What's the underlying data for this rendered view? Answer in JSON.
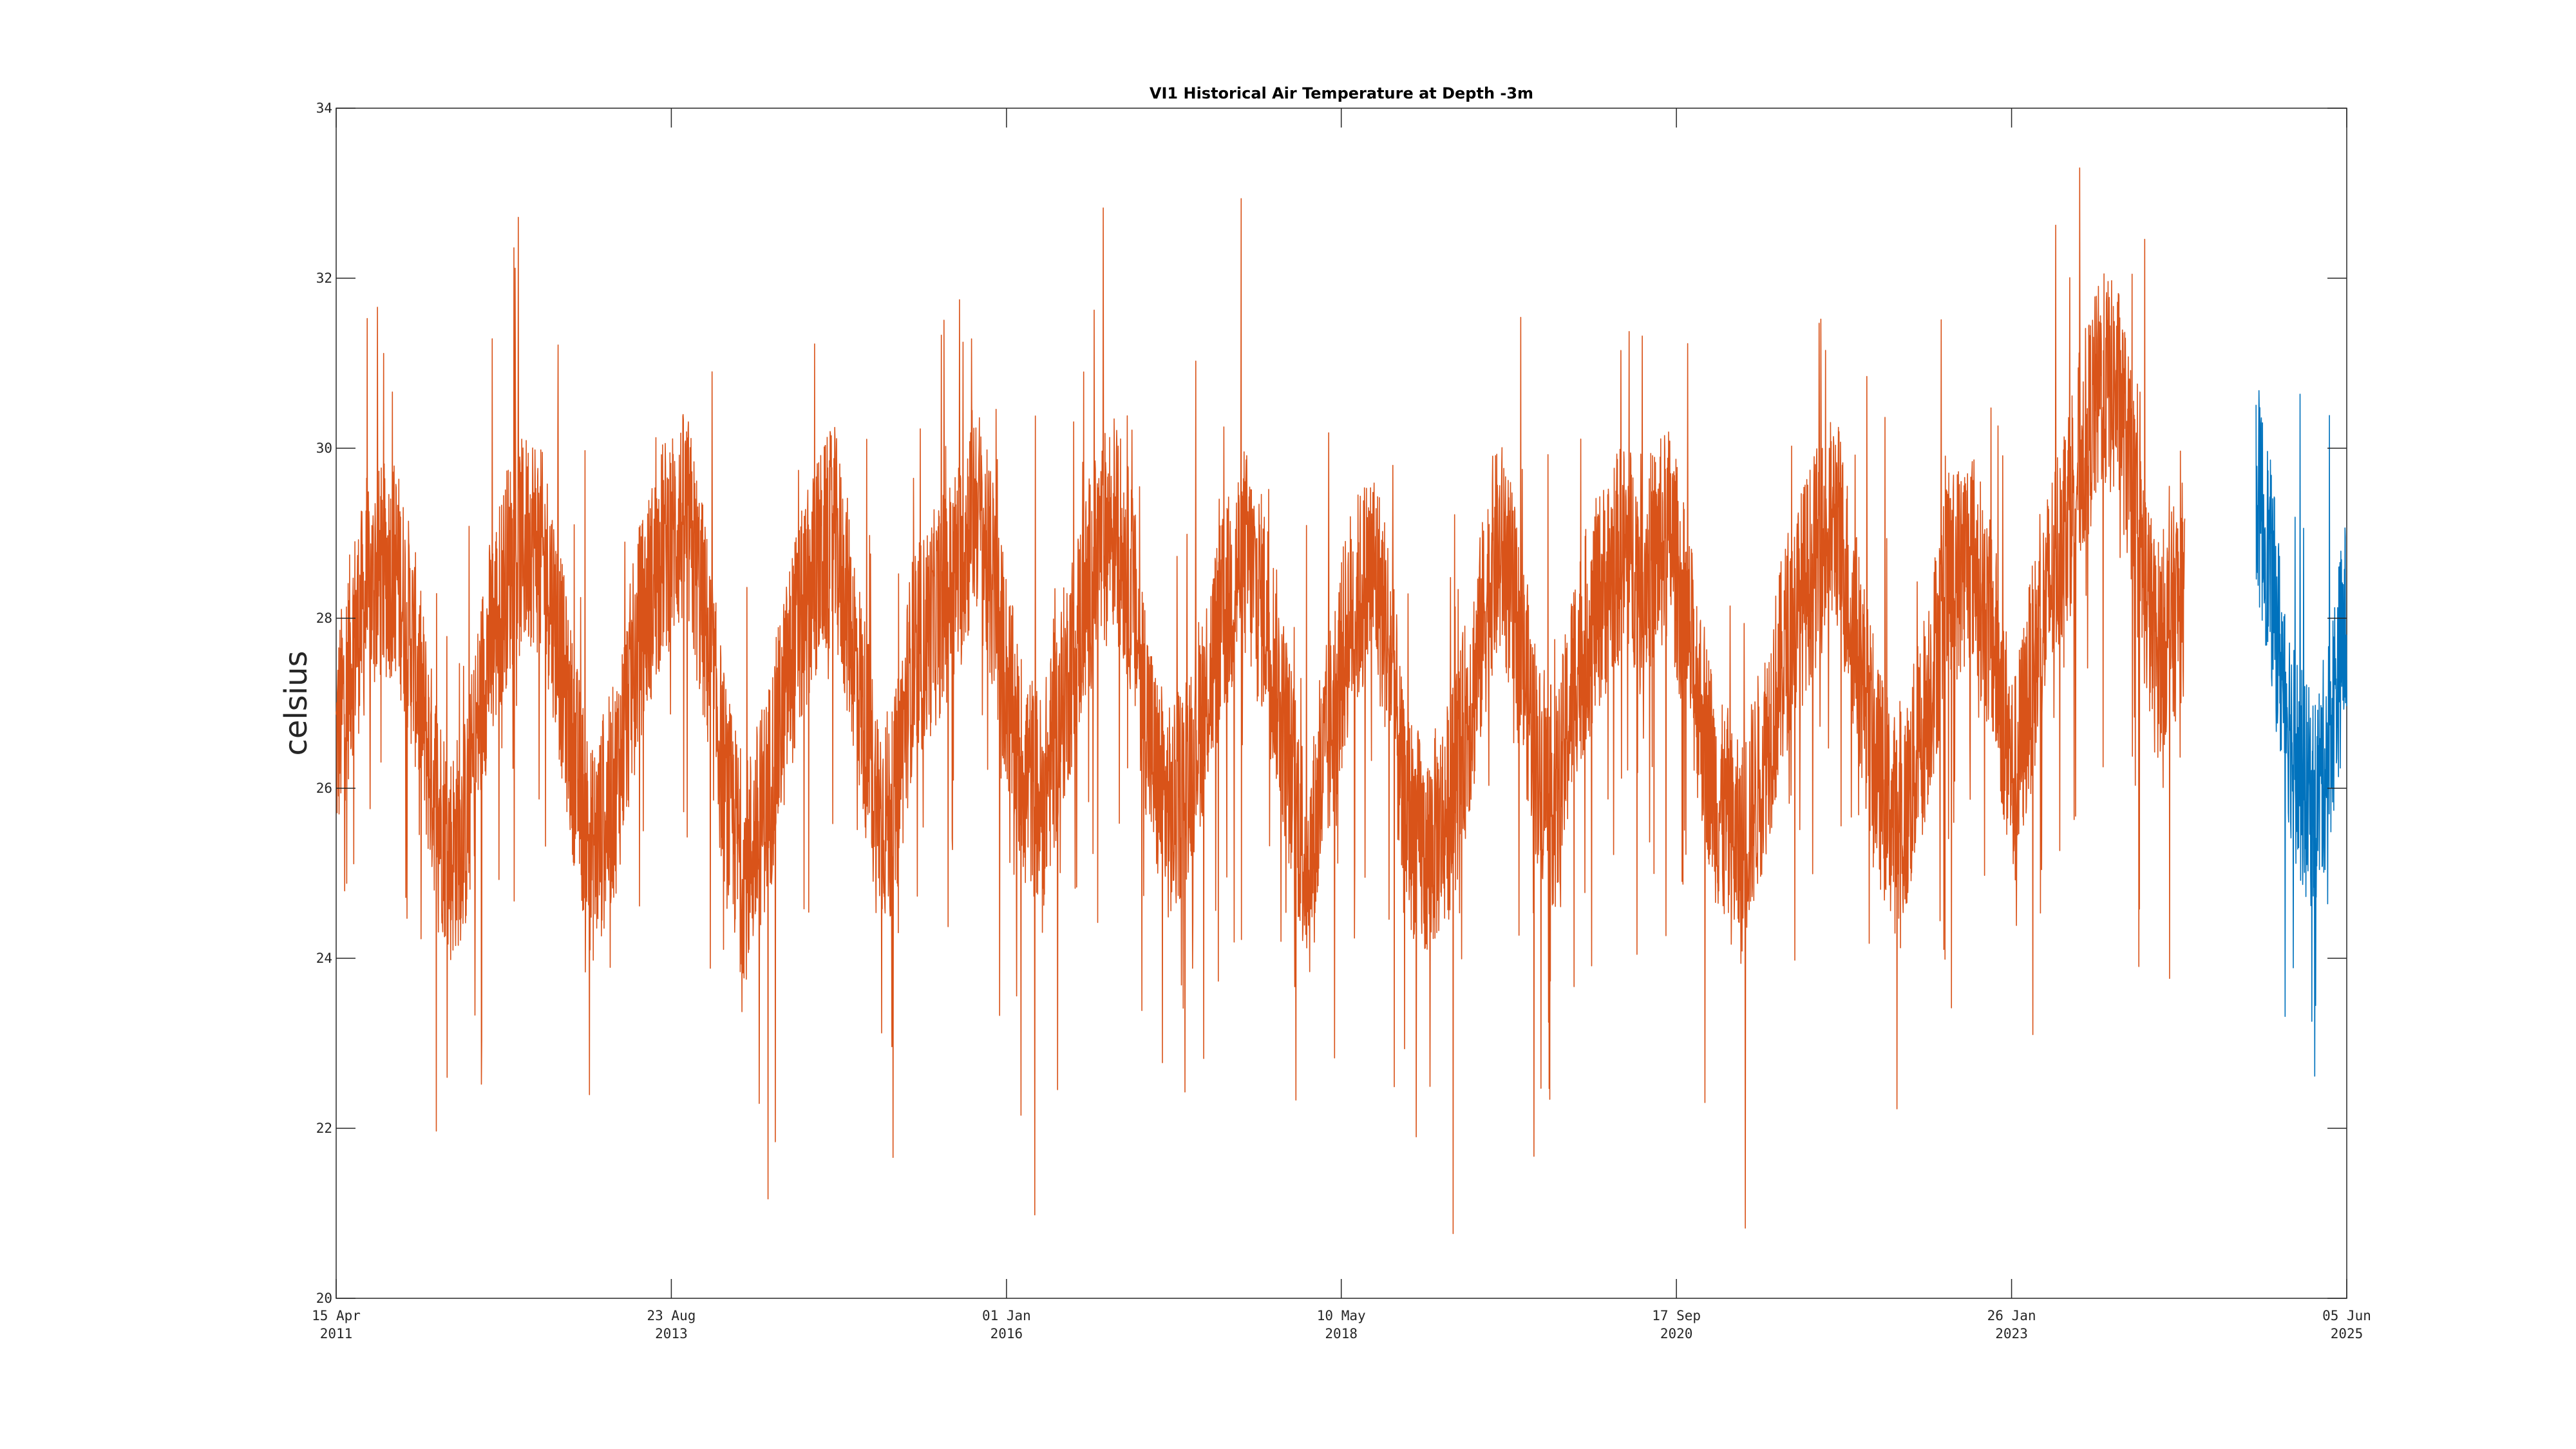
{
  "chart_data": {
    "type": "line",
    "title": "VI1 Historical Air Temperature at Depth -3m",
    "xlabel": "",
    "ylabel": "celsius",
    "ylim": [
      20,
      34
    ],
    "xlim": [
      "2011-04-15",
      "2025-06-05"
    ],
    "grid": false,
    "legend": "none",
    "y_ticks": [
      20,
      22,
      24,
      26,
      28,
      30,
      32,
      34
    ],
    "x_ticks": [
      {
        "date": "2011-04-15",
        "line1": "15 Apr",
        "line2": "2011"
      },
      {
        "date": "2013-08-23",
        "line1": "23 Aug",
        "line2": "2013"
      },
      {
        "date": "2016-01-01",
        "line1": "01 Jan",
        "line2": "2016"
      },
      {
        "date": "2018-05-10",
        "line1": "10 May",
        "line2": "2018"
      },
      {
        "date": "2020-09-17",
        "line1": "17 Sep",
        "line2": "2020"
      },
      {
        "date": "2023-01-26",
        "line1": "26 Jan",
        "line2": "2023"
      },
      {
        "date": "2025-06-05",
        "line1": "05 Jun",
        "line2": "2025"
      }
    ],
    "series": [
      {
        "color": "#D95319",
        "points": [
          [
            "2011-04-15",
            26.5
          ],
          [
            "2011-06-01",
            27.8
          ],
          [
            "2011-08-01",
            28.5
          ],
          [
            "2011-09-15",
            28.6
          ],
          [
            "2011-11-01",
            27.6
          ],
          [
            "2011-12-15",
            26.2
          ],
          [
            "2012-02-01",
            25.2
          ],
          [
            "2012-03-15",
            25.6
          ],
          [
            "2012-05-01",
            27.4
          ],
          [
            "2012-07-01",
            28.6
          ],
          [
            "2012-09-01",
            29.0
          ],
          [
            "2012-10-15",
            28.4
          ],
          [
            "2012-12-15",
            26.4
          ],
          [
            "2013-02-01",
            25.2
          ],
          [
            "2013-04-01",
            26.0
          ],
          [
            "2013-06-01",
            27.8
          ],
          [
            "2013-08-01",
            28.8
          ],
          [
            "2013-10-01",
            29.2
          ],
          [
            "2013-11-15",
            28.0
          ],
          [
            "2014-01-15",
            25.8
          ],
          [
            "2014-03-01",
            25.0
          ],
          [
            "2014-05-01",
            26.0
          ],
          [
            "2014-07-01",
            27.6
          ],
          [
            "2014-09-01",
            28.6
          ],
          [
            "2014-10-15",
            29.0
          ],
          [
            "2014-12-01",
            27.8
          ],
          [
            "2015-02-01",
            25.8
          ],
          [
            "2015-03-15",
            25.6
          ],
          [
            "2015-05-01",
            27.4
          ],
          [
            "2015-07-01",
            28.0
          ],
          [
            "2015-09-01",
            28.6
          ],
          [
            "2015-10-15",
            29.4
          ],
          [
            "2015-12-01",
            28.2
          ],
          [
            "2016-02-01",
            26.4
          ],
          [
            "2016-04-01",
            25.8
          ],
          [
            "2016-06-01",
            27.2
          ],
          [
            "2016-08-01",
            28.4
          ],
          [
            "2016-10-01",
            29.2
          ],
          [
            "2016-11-15",
            28.4
          ],
          [
            "2017-01-15",
            26.2
          ],
          [
            "2017-03-01",
            25.6
          ],
          [
            "2017-05-01",
            26.6
          ],
          [
            "2017-07-01",
            27.8
          ],
          [
            "2017-09-01",
            28.8
          ],
          [
            "2017-11-01",
            28.0
          ],
          [
            "2018-01-01",
            26.2
          ],
          [
            "2018-02-15",
            25.0
          ],
          [
            "2018-04-01",
            26.4
          ],
          [
            "2018-06-01",
            28.0
          ],
          [
            "2018-08-01",
            28.6
          ],
          [
            "2018-09-15",
            27.6
          ],
          [
            "2018-10-15",
            25.8
          ],
          [
            "2018-12-15",
            25.2
          ],
          [
            "2019-02-15",
            25.8
          ],
          [
            "2019-04-15",
            27.2
          ],
          [
            "2019-06-01",
            28.6
          ],
          [
            "2019-07-01",
            28.8
          ],
          [
            "2019-08-15",
            27.6
          ],
          [
            "2019-10-01",
            26.2
          ],
          [
            "2019-11-15",
            25.8
          ],
          [
            "2020-01-01",
            27.4
          ],
          [
            "2020-03-01",
            28.2
          ],
          [
            "2020-05-01",
            28.8
          ],
          [
            "2020-07-01",
            28.6
          ],
          [
            "2020-09-01",
            29.0
          ],
          [
            "2020-11-01",
            27.4
          ],
          [
            "2021-01-01",
            25.8
          ],
          [
            "2021-03-01",
            25.2
          ],
          [
            "2021-05-01",
            26.4
          ],
          [
            "2021-07-01",
            27.8
          ],
          [
            "2021-09-01",
            28.6
          ],
          [
            "2021-11-01",
            29.2
          ],
          [
            "2021-12-15",
            28.0
          ],
          [
            "2022-02-15",
            26.2
          ],
          [
            "2022-04-15",
            25.4
          ],
          [
            "2022-06-15",
            26.8
          ],
          [
            "2022-08-15",
            28.4
          ],
          [
            "2022-10-15",
            28.8
          ],
          [
            "2022-12-15",
            27.6
          ],
          [
            "2023-02-01",
            26.0
          ],
          [
            "2023-03-15",
            27.2
          ],
          [
            "2023-05-15",
            28.6
          ],
          [
            "2023-07-15",
            29.8
          ],
          [
            "2023-09-15",
            30.8
          ],
          [
            "2023-11-01",
            30.6
          ],
          [
            "2023-12-15",
            29.0
          ],
          [
            "2024-02-01",
            27.6
          ],
          [
            "2024-03-15",
            28.0
          ],
          [
            "2024-04-15",
            28.4
          ]
        ]
      },
      {
        "color": "#0072BD",
        "points": [
          [
            "2024-10-15",
            29.6
          ],
          [
            "2024-11-15",
            28.8
          ],
          [
            "2024-12-15",
            27.6
          ],
          [
            "2025-01-15",
            26.6
          ],
          [
            "2025-02-15",
            26.0
          ],
          [
            "2025-03-15",
            25.8
          ],
          [
            "2025-04-15",
            26.4
          ],
          [
            "2025-05-15",
            27.4
          ],
          [
            "2025-06-05",
            28.0
          ]
        ]
      }
    ]
  }
}
